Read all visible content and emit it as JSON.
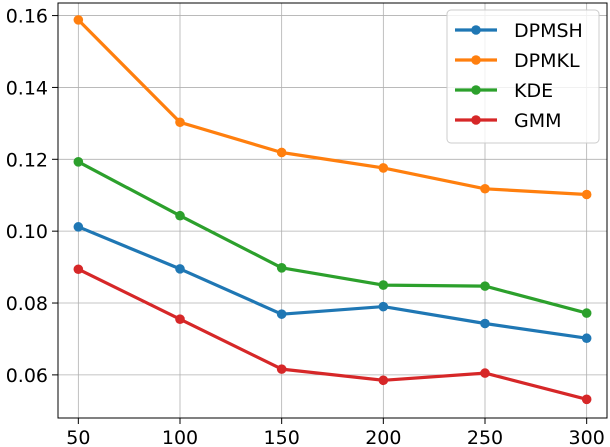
{
  "chart_data": {
    "type": "line",
    "title": "",
    "xlabel": "",
    "ylabel": "",
    "x": [
      50,
      100,
      150,
      200,
      250,
      300
    ],
    "xticks": [
      50,
      100,
      150,
      200,
      250,
      300
    ],
    "yticks": [
      0.06,
      0.08,
      0.1,
      0.12,
      0.14,
      0.16
    ],
    "ytick_labels": [
      "0.06",
      "0.08",
      "0.10",
      "0.12",
      "0.14",
      "0.16"
    ],
    "xlim": [
      40,
      310
    ],
    "ylim": [
      0.048,
      0.1635
    ],
    "grid": true,
    "legend_position": "top-right",
    "series": [
      {
        "name": "DPMSH",
        "color": "#1f77b4",
        "values": [
          0.1012,
          0.0895,
          0.0769,
          0.079,
          0.0743,
          0.0702
        ]
      },
      {
        "name": "DPMKL",
        "color": "#ff7f0e",
        "values": [
          0.1588,
          0.1303,
          0.1219,
          0.1176,
          0.1118,
          0.1102
        ]
      },
      {
        "name": "KDE",
        "color": "#2ca02c",
        "values": [
          0.1193,
          0.1043,
          0.0898,
          0.085,
          0.0847,
          0.0772
        ]
      },
      {
        "name": "GMM",
        "color": "#d62728",
        "values": [
          0.0894,
          0.0755,
          0.0616,
          0.0585,
          0.0605,
          0.0532
        ]
      }
    ]
  }
}
